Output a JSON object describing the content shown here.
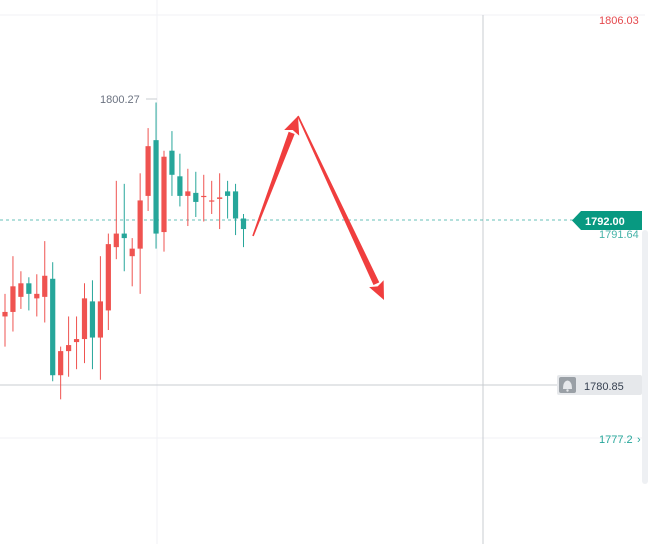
{
  "chart_data": {
    "type": "candlestick",
    "price_scale": {
      "min": 1770.9,
      "max": 1807.0
    },
    "high_label": "1800.27",
    "axis_labels": {
      "top": "1806.03",
      "current_price": "1792.00",
      "under_current": "1791.64",
      "crosshair_price": "1780.85",
      "lower": "1777.2"
    },
    "candles": [
      {
        "o": 1786.0,
        "h": 1787.5,
        "l": 1784.0,
        "c": 1786.3
      },
      {
        "o": 1786.3,
        "h": 1790.0,
        "l": 1785.0,
        "c": 1788.0
      },
      {
        "o": 1787.3,
        "h": 1789.0,
        "l": 1786.5,
        "c": 1788.2
      },
      {
        "o": 1788.2,
        "h": 1788.6,
        "l": 1786.4,
        "c": 1787.5
      },
      {
        "o": 1787.2,
        "h": 1788.8,
        "l": 1786.0,
        "c": 1787.5
      },
      {
        "o": 1787.3,
        "h": 1791.0,
        "l": 1785.6,
        "c": 1788.7
      },
      {
        "o": 1788.5,
        "h": 1789.6,
        "l": 1781.7,
        "c": 1782.1
      },
      {
        "o": 1782.1,
        "h": 1784.0,
        "l": 1780.5,
        "c": 1783.7
      },
      {
        "o": 1783.7,
        "h": 1786.0,
        "l": 1782.0,
        "c": 1784.1
      },
      {
        "o": 1784.3,
        "h": 1786.0,
        "l": 1782.5,
        "c": 1784.5
      },
      {
        "o": 1784.5,
        "h": 1788.2,
        "l": 1782.9,
        "c": 1787.2
      },
      {
        "o": 1787.0,
        "h": 1788.4,
        "l": 1782.5,
        "c": 1784.6
      },
      {
        "o": 1784.6,
        "h": 1790.0,
        "l": 1781.8,
        "c": 1787.0
      },
      {
        "o": 1786.4,
        "h": 1791.5,
        "l": 1785.1,
        "c": 1790.8
      },
      {
        "o": 1790.6,
        "h": 1795.0,
        "l": 1789.8,
        "c": 1791.5
      },
      {
        "o": 1791.5,
        "h": 1794.8,
        "l": 1789.0,
        "c": 1791.2
      },
      {
        "o": 1790.0,
        "h": 1791.2,
        "l": 1788.0,
        "c": 1790.5
      },
      {
        "o": 1790.5,
        "h": 1795.5,
        "l": 1787.5,
        "c": 1793.7
      },
      {
        "o": 1794.0,
        "h": 1798.5,
        "l": 1793.0,
        "c": 1797.3
      },
      {
        "o": 1797.7,
        "h": 1800.2,
        "l": 1790.5,
        "c": 1791.5
      },
      {
        "o": 1791.6,
        "h": 1797.0,
        "l": 1790.3,
        "c": 1796.6
      },
      {
        "o": 1797.0,
        "h": 1798.3,
        "l": 1794.0,
        "c": 1795.4
      },
      {
        "o": 1795.3,
        "h": 1796.8,
        "l": 1793.3,
        "c": 1794.0
      },
      {
        "o": 1794.0,
        "h": 1795.8,
        "l": 1792.0,
        "c": 1794.3
      },
      {
        "o": 1794.2,
        "h": 1795.6,
        "l": 1792.6,
        "c": 1793.6
      },
      {
        "o": 1794.0,
        "h": 1795.4,
        "l": 1792.3,
        "c": 1794.0
      },
      {
        "o": 1793.7,
        "h": 1795.0,
        "l": 1792.8,
        "c": 1793.7
      },
      {
        "o": 1793.8,
        "h": 1795.5,
        "l": 1791.8,
        "c": 1793.9
      },
      {
        "o": 1794.3,
        "h": 1795.0,
        "l": 1792.5,
        "c": 1794.0
      },
      {
        "o": 1794.3,
        "h": 1794.8,
        "l": 1791.4,
        "c": 1792.5
      },
      {
        "o": 1792.5,
        "h": 1792.8,
        "l": 1790.6,
        "c": 1791.8
      }
    ],
    "arrows": [
      {
        "from": [
          253,
          236
        ],
        "to": [
          298,
          116
        ]
      },
      {
        "from": [
          298,
          116
        ],
        "to": [
          384,
          300
        ]
      }
    ]
  },
  "colors": {
    "up": "#ef5350",
    "down": "#26a69a",
    "arrow": "#f03e3e",
    "top_label": "#e5484d",
    "lower_label": "#26a69a",
    "grid": "#eef0f3"
  },
  "icons": {
    "alert": "bell-icon"
  }
}
